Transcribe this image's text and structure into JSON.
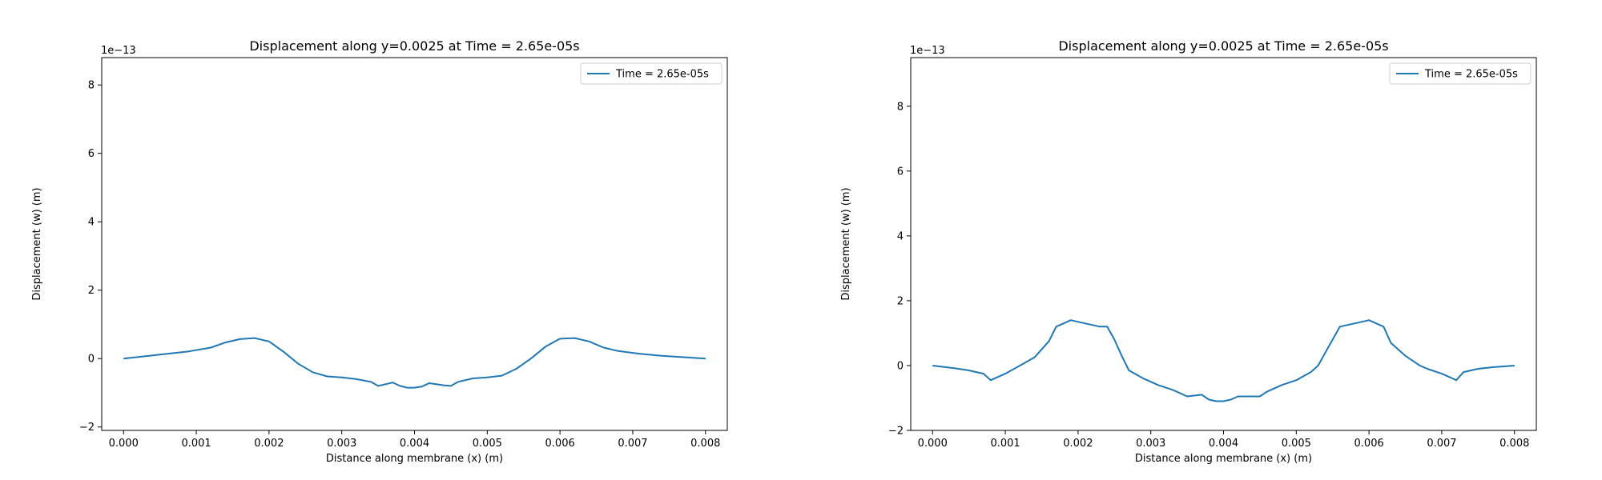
{
  "chart_data": [
    {
      "type": "line",
      "title": "Displacement along y=0.0025 at Time = 2.65e-05s",
      "xlabel": "Distance along membrane (x) (m)",
      "ylabel": "Displacement (w) (m)",
      "y_offset_label": "1e−13",
      "xlim": [
        -0.0003,
        0.0083
      ],
      "ylim": [
        -2.1,
        8.8
      ],
      "xticks": [
        0.0,
        0.001,
        0.002,
        0.003,
        0.004,
        0.005,
        0.006,
        0.007,
        0.008
      ],
      "xtick_labels": [
        "0.000",
        "0.001",
        "0.002",
        "0.003",
        "0.004",
        "0.005",
        "0.006",
        "0.007",
        "0.008"
      ],
      "yticks": [
        -2,
        0,
        2,
        4,
        6,
        8
      ],
      "ytick_labels": [
        "−2",
        "0",
        "2",
        "4",
        "6",
        "8"
      ],
      "grid": false,
      "legend_position": "top-right",
      "series": [
        {
          "name": "Time = 2.65e-05s",
          "color": "#1f77b4",
          "x": [
            0.0,
            0.0003,
            0.0006,
            0.0009,
            0.0012,
            0.0014,
            0.0016,
            0.0018,
            0.002,
            0.0022,
            0.0024,
            0.0026,
            0.0028,
            0.003,
            0.0032,
            0.0034,
            0.0035,
            0.0036,
            0.0037,
            0.0038,
            0.0039,
            0.004,
            0.0041,
            0.0042,
            0.0043,
            0.0044,
            0.0045,
            0.0046,
            0.0048,
            0.005,
            0.0052,
            0.0054,
            0.0056,
            0.0058,
            0.006,
            0.0062,
            0.0064,
            0.0066,
            0.0068,
            0.0071,
            0.0074,
            0.0077,
            0.008
          ],
          "y": [
            0.0,
            0.07,
            0.14,
            0.21,
            0.32,
            0.47,
            0.57,
            0.6,
            0.5,
            0.2,
            -0.15,
            -0.4,
            -0.52,
            -0.55,
            -0.6,
            -0.68,
            -0.8,
            -0.75,
            -0.7,
            -0.8,
            -0.85,
            -0.85,
            -0.82,
            -0.72,
            -0.75,
            -0.78,
            -0.8,
            -0.68,
            -0.58,
            -0.55,
            -0.5,
            -0.3,
            0.0,
            0.35,
            0.58,
            0.6,
            0.5,
            0.32,
            0.22,
            0.14,
            0.08,
            0.04,
            0.0
          ]
        }
      ]
    },
    {
      "type": "line",
      "title": "Displacement along y=0.0025 at Time = 2.65e-05s",
      "xlabel": "Distance along membrane (x) (m)",
      "ylabel": "Displacement (w) (m)",
      "y_offset_label": "1e−13",
      "xlim": [
        -0.0003,
        0.0083
      ],
      "ylim": [
        -2.0,
        9.5
      ],
      "xticks": [
        0.0,
        0.001,
        0.002,
        0.003,
        0.004,
        0.005,
        0.006,
        0.007,
        0.008
      ],
      "xtick_labels": [
        "0.000",
        "0.001",
        "0.002",
        "0.003",
        "0.004",
        "0.005",
        "0.006",
        "0.007",
        "0.008"
      ],
      "yticks": [
        -2,
        0,
        2,
        4,
        6,
        8
      ],
      "ytick_labels": [
        "−2",
        "0",
        "2",
        "4",
        "6",
        "8"
      ],
      "grid": false,
      "legend_position": "top-right",
      "series": [
        {
          "name": "Time = 2.65e-05s",
          "color": "#1f77b4",
          "x": [
            0.0,
            0.0003,
            0.0005,
            0.0007,
            0.0008,
            0.001,
            0.0012,
            0.0014,
            0.0015,
            0.0016,
            0.0017,
            0.0018,
            0.0019,
            0.002,
            0.0021,
            0.0022,
            0.0023,
            0.0024,
            0.0025,
            0.0026,
            0.0027,
            0.0029,
            0.0031,
            0.0033,
            0.0035,
            0.0037,
            0.0038,
            0.0039,
            0.004,
            0.0041,
            0.0042,
            0.0043,
            0.0045,
            0.0046,
            0.0048,
            0.005,
            0.0052,
            0.0053,
            0.0054,
            0.0055,
            0.0056,
            0.0057,
            0.0058,
            0.0059,
            0.006,
            0.0061,
            0.0062,
            0.0063,
            0.0064,
            0.0065,
            0.0066,
            0.0067,
            0.0068,
            0.007,
            0.0072,
            0.0073,
            0.0075,
            0.0077,
            0.008
          ],
          "y": [
            0.0,
            -0.08,
            -0.15,
            -0.25,
            -0.45,
            -0.25,
            0.0,
            0.25,
            0.5,
            0.75,
            1.2,
            1.3,
            1.4,
            1.35,
            1.3,
            1.25,
            1.2,
            1.2,
            0.8,
            0.3,
            -0.15,
            -0.4,
            -0.6,
            -0.75,
            -0.95,
            -0.9,
            -1.05,
            -1.1,
            -1.1,
            -1.05,
            -0.95,
            -0.95,
            -0.95,
            -0.8,
            -0.6,
            -0.45,
            -0.2,
            0.0,
            0.4,
            0.8,
            1.2,
            1.25,
            1.3,
            1.35,
            1.4,
            1.3,
            1.2,
            0.7,
            0.5,
            0.3,
            0.15,
            0.0,
            -0.1,
            -0.25,
            -0.45,
            -0.2,
            -0.1,
            -0.05,
            0.0
          ]
        }
      ]
    }
  ]
}
